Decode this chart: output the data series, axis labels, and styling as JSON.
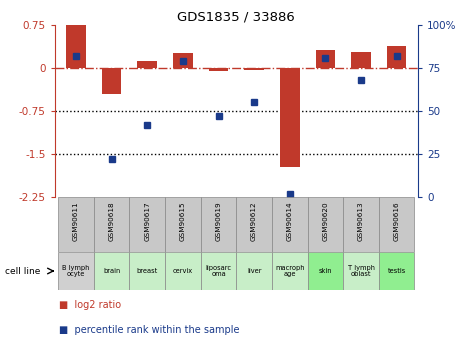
{
  "title": "GDS1835 / 33886",
  "gsm_labels": [
    "GSM90611",
    "GSM90618",
    "GSM90617",
    "GSM90615",
    "GSM90619",
    "GSM90612",
    "GSM90614",
    "GSM90620",
    "GSM90613",
    "GSM90616"
  ],
  "cell_types": [
    "B lymph\nocyte",
    "brain",
    "breast",
    "cervix",
    "liposarc\noma",
    "liver",
    "macroph\nage",
    "skin",
    "T lymph\noblast",
    "testis"
  ],
  "cell_bg": [
    "#d0d0d0",
    "#c8eec8",
    "#c8eec8",
    "#c8eec8",
    "#c8eec8",
    "#c8eec8",
    "#c8eec8",
    "#90ee90",
    "#c8eec8",
    "#90ee90"
  ],
  "log2_ratio": [
    0.75,
    -0.45,
    0.13,
    0.27,
    -0.06,
    -0.04,
    -1.72,
    0.32,
    0.28,
    0.38
  ],
  "percentile_rank": [
    82,
    22,
    42,
    79,
    47,
    55,
    2,
    81,
    68,
    82
  ],
  "bar_color": "#c0392b",
  "dot_color": "#1a3a8a",
  "ylim_left": [
    -2.25,
    0.75
  ],
  "ylim_right": [
    0,
    100
  ],
  "yticks_left": [
    0.75,
    0,
    -0.75,
    -1.5,
    -2.25
  ],
  "yticks_right": [
    100,
    75,
    50,
    25,
    0
  ],
  "dotted_lines": [
    -0.75,
    -1.5
  ],
  "background_color": "#ffffff"
}
